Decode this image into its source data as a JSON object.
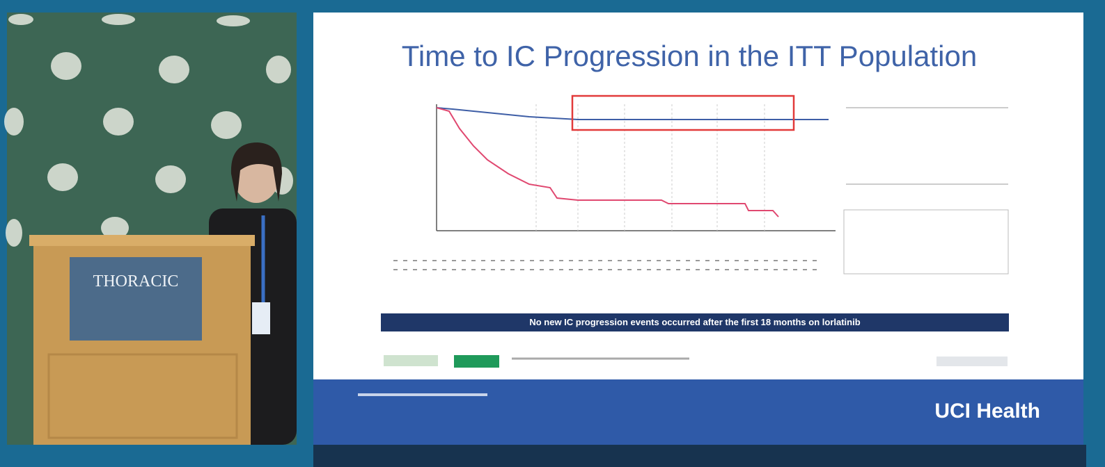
{
  "speaker_video": {
    "podium_sign": "THORACIC"
  },
  "slide": {
    "title": "Time to IC Progression in the ITT Population",
    "banner": "No new IC progression events occurred after the first 18 months on lorlatinib",
    "footer_brand": "UCI Health"
  }
}
